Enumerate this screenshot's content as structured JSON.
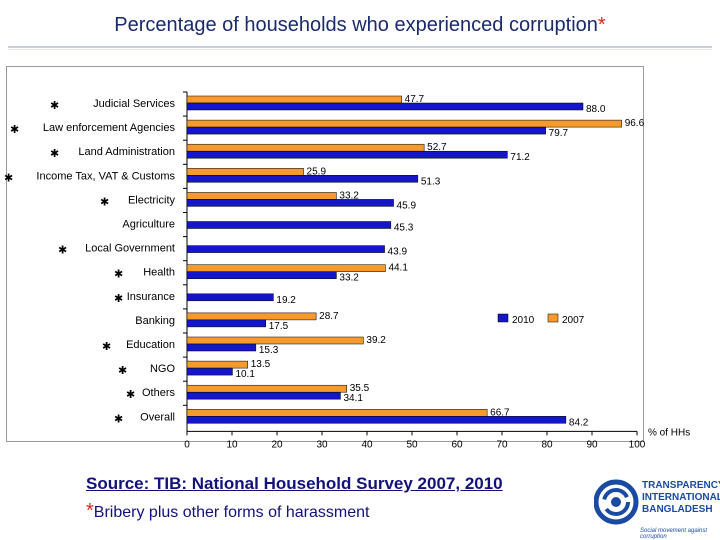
{
  "page": {
    "title": "Percentage of households who experienced corruption",
    "title_star": "*",
    "source": "Source: TIB: National Household Survey 2007, 2010",
    "footnote_star": "*",
    "footnote": "Bribery plus other forms of harassment",
    "logo": {
      "line1": "TRANSPARENCY",
      "line2": "INTERNATIONAL",
      "line3": "BANGLADESH",
      "tagline": "Social movement against corruption",
      "icon": "ti-globe-logo"
    }
  },
  "chart_data": {
    "type": "bar",
    "orientation": "horizontal",
    "categories": [
      "Judicial Services",
      "Law enforcement Agencies",
      "Land Administration",
      "Income Tax, VAT & Customs",
      "Electricity",
      "Agriculture",
      "Local Government",
      "Health",
      "Insurance",
      "Banking",
      "Education",
      "NGO",
      "Others",
      "Overall"
    ],
    "series": [
      {
        "name": "2010",
        "color": "#1515c9",
        "values": [
          88.0,
          79.7,
          71.2,
          51.3,
          45.9,
          45.3,
          43.9,
          33.2,
          19.2,
          17.5,
          15.3,
          10.1,
          34.1,
          84.2
        ],
        "labels": [
          "88.0",
          "79.7",
          "71.2",
          "51.3",
          "45.9",
          "45.3",
          "43.9",
          "33.2",
          "19.2",
          "17.5",
          "15.3",
          "10.1",
          "34.1",
          "84.2"
        ]
      },
      {
        "name": "2007",
        "color": "#f59a2b",
        "values": [
          47.7,
          96.6,
          52.7,
          25.9,
          33.2,
          null,
          null,
          44.1,
          null,
          28.7,
          39.2,
          13.5,
          35.5,
          66.7
        ],
        "labels": [
          "47.7",
          "96.6",
          "52.7",
          "25.9",
          "33.2",
          "",
          "",
          "44.1",
          "",
          "28.7",
          "39.2",
          "13.5",
          "35.5",
          "66.7"
        ]
      }
    ],
    "starred": [
      true,
      true,
      true,
      true,
      true,
      false,
      true,
      true,
      true,
      false,
      true,
      true,
      true,
      true
    ],
    "xlim": [
      0,
      100
    ],
    "xticks": [
      "0",
      "10",
      "20",
      "30",
      "40",
      "50",
      "60",
      "70",
      "80",
      "90",
      "100"
    ],
    "xlabel": "% of HHs",
    "legend_position": "right-middle",
    "grid": false
  }
}
